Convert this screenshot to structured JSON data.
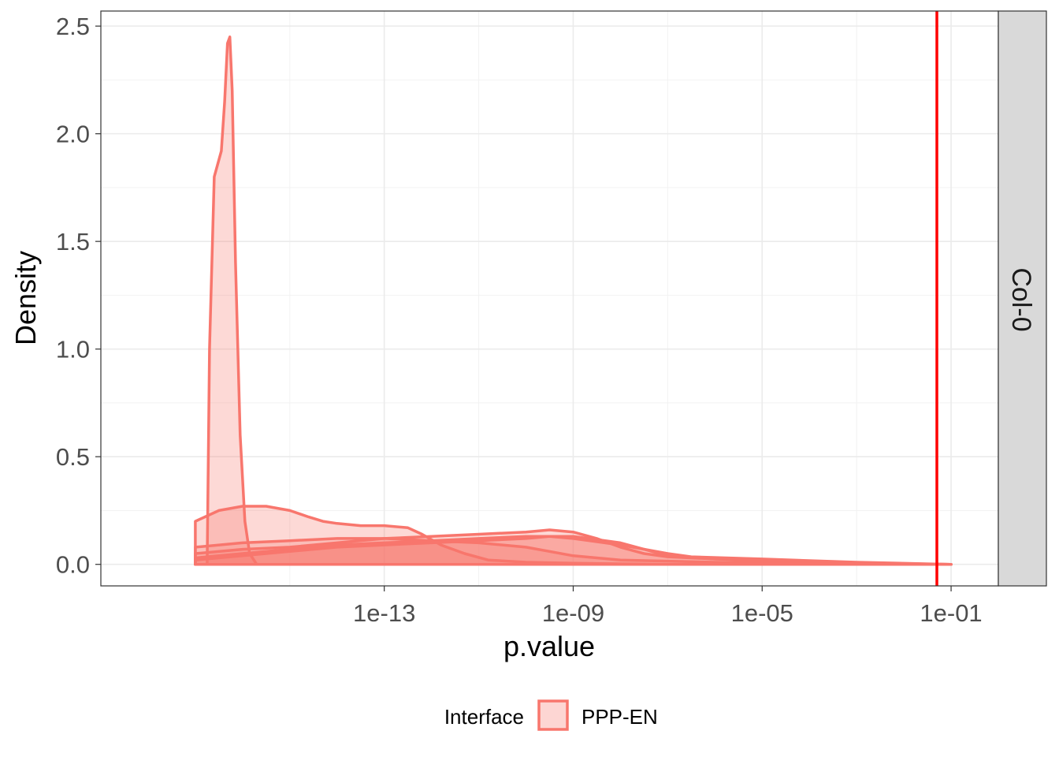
{
  "chart_data": {
    "type": "area",
    "xlabel": "p.value",
    "ylabel": "Density",
    "x_scale": "log10",
    "xlim": [
      1e-19,
      1
    ],
    "ylim": [
      -0.1,
      2.57
    ],
    "x_ticks": [
      {
        "value": 1e-13,
        "label": "1e-13"
      },
      {
        "value": 1e-09,
        "label": "1e-09"
      },
      {
        "value": 1e-05,
        "label": "1e-05"
      },
      {
        "value": 0.1,
        "label": "1e-01"
      }
    ],
    "y_ticks": [
      {
        "value": 0.0,
        "label": "0.0"
      },
      {
        "value": 0.5,
        "label": "0.5"
      },
      {
        "value": 1.0,
        "label": "1.0"
      },
      {
        "value": 1.5,
        "label": "1.5"
      },
      {
        "value": 2.0,
        "label": "2.0"
      },
      {
        "value": 2.5,
        "label": "2.5"
      }
    ],
    "grid": true,
    "facet_label": "Col-0",
    "threshold_line": {
      "x": 0.05,
      "color": "#ff0000"
    },
    "fill_color": "#f8766d",
    "legend": {
      "title": "Interface",
      "entries": [
        "PPP-EN"
      ],
      "position": "bottom"
    },
    "series": [
      {
        "points": [
          [
            -16.75,
            0
          ],
          [
            -16.7,
            1.0
          ],
          [
            -16.6,
            1.8
          ],
          [
            -16.45,
            1.92
          ],
          [
            -16.38,
            2.15
          ],
          [
            -16.32,
            2.42
          ],
          [
            -16.27,
            2.45
          ],
          [
            -16.22,
            2.2
          ],
          [
            -16.15,
            1.4
          ],
          [
            -16.05,
            0.6
          ],
          [
            -15.95,
            0.2
          ],
          [
            -15.85,
            0.05
          ],
          [
            -15.7,
            0
          ]
        ]
      },
      {
        "points": [
          [
            -17.0,
            0.2
          ],
          [
            -16.5,
            0.25
          ],
          [
            -16.0,
            0.27
          ],
          [
            -15.5,
            0.27
          ],
          [
            -15.0,
            0.25
          ],
          [
            -14.6,
            0.22
          ],
          [
            -14.3,
            0.2
          ],
          [
            -14.0,
            0.19
          ],
          [
            -13.5,
            0.18
          ],
          [
            -13.0,
            0.18
          ],
          [
            -12.5,
            0.17
          ],
          [
            -12.2,
            0.14
          ],
          [
            -11.8,
            0.09
          ],
          [
            -11.3,
            0.05
          ],
          [
            -10.8,
            0.02
          ],
          [
            -10.0,
            0.01
          ],
          [
            -9.0,
            0.005
          ],
          [
            -7.0,
            0
          ]
        ]
      },
      {
        "points": [
          [
            -17.0,
            0.08
          ],
          [
            -16.0,
            0.1
          ],
          [
            -15.0,
            0.11
          ],
          [
            -14.0,
            0.12
          ],
          [
            -13.0,
            0.12
          ],
          [
            -12.0,
            0.11
          ],
          [
            -11.0,
            0.1
          ],
          [
            -10.0,
            0.08
          ],
          [
            -9.5,
            0.06
          ],
          [
            -9.0,
            0.04
          ],
          [
            -8.0,
            0.02
          ],
          [
            -6.0,
            0.01
          ],
          [
            -1.0,
            0
          ]
        ]
      },
      {
        "points": [
          [
            -17.0,
            0.05
          ],
          [
            -16.0,
            0.07
          ],
          [
            -15.0,
            0.08
          ],
          [
            -14.0,
            0.1
          ],
          [
            -13.0,
            0.12
          ],
          [
            -12.0,
            0.13
          ],
          [
            -11.0,
            0.14
          ],
          [
            -10.0,
            0.15
          ],
          [
            -9.5,
            0.16
          ],
          [
            -9.0,
            0.15
          ],
          [
            -8.5,
            0.12
          ],
          [
            -8.0,
            0.08
          ],
          [
            -7.5,
            0.05
          ],
          [
            -7.0,
            0.035
          ],
          [
            -6.0,
            0.025
          ],
          [
            -5.0,
            0.02
          ],
          [
            -3.0,
            0.005
          ],
          [
            -1.0,
            0
          ]
        ]
      },
      {
        "points": [
          [
            -17.0,
            0.03
          ],
          [
            -16.0,
            0.05
          ],
          [
            -15.0,
            0.07
          ],
          [
            -14.0,
            0.09
          ],
          [
            -13.0,
            0.1
          ],
          [
            -12.0,
            0.11
          ],
          [
            -11.0,
            0.12
          ],
          [
            -10.0,
            0.13
          ],
          [
            -9.0,
            0.13
          ],
          [
            -8.0,
            0.1
          ],
          [
            -7.5,
            0.07
          ],
          [
            -7.0,
            0.04
          ],
          [
            -6.0,
            0.025
          ],
          [
            -4.0,
            0.01
          ],
          [
            -1.0,
            0
          ]
        ]
      },
      {
        "points": [
          [
            -17.0,
            0.02
          ],
          [
            -16.0,
            0.04
          ],
          [
            -15.0,
            0.06
          ],
          [
            -14.0,
            0.08
          ],
          [
            -13.0,
            0.09
          ],
          [
            -12.0,
            0.1
          ],
          [
            -11.0,
            0.11
          ],
          [
            -10.0,
            0.12
          ],
          [
            -9.5,
            0.13
          ],
          [
            -9.0,
            0.12
          ],
          [
            -8.0,
            0.09
          ],
          [
            -7.0,
            0.05
          ],
          [
            -6.5,
            0.035
          ],
          [
            -5.0,
            0.025
          ],
          [
            -3.0,
            0.01
          ],
          [
            -1.0,
            0
          ]
        ]
      }
    ]
  }
}
